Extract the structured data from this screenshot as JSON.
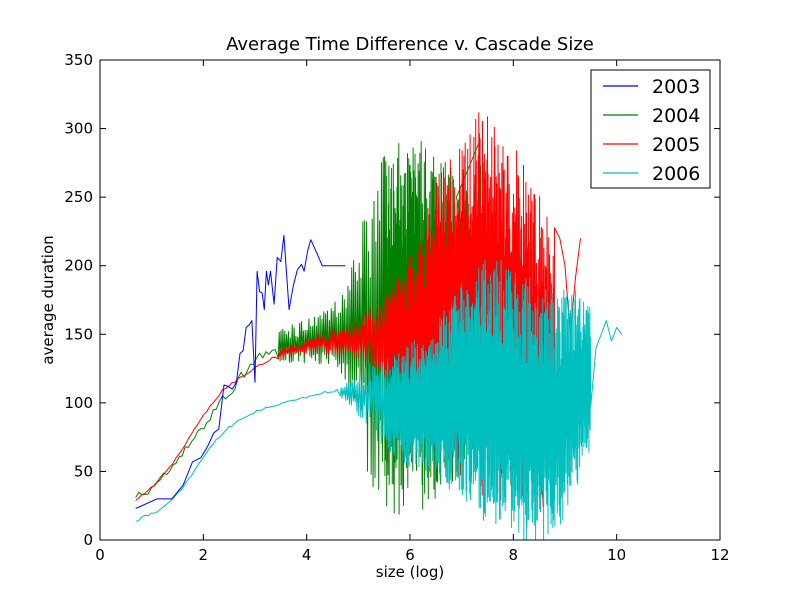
{
  "chart_data": {
    "type": "line",
    "title": "Average Time Difference v. Cascade Size",
    "xlabel": "size (log)",
    "ylabel": "average duration",
    "xlim": [
      0,
      12
    ],
    "ylim": [
      0,
      350
    ],
    "xticks": [
      "0",
      "2",
      "4",
      "6",
      "8",
      "10",
      "12"
    ],
    "yticks": [
      "0",
      "50",
      "100",
      "150",
      "200",
      "250",
      "300",
      "350"
    ],
    "grid": false,
    "legend_position": "top-right",
    "series": [
      {
        "name": "2003",
        "color": "#0000ff",
        "trend": [
          [
            0.69,
            23
          ],
          [
            1.1,
            30
          ],
          [
            1.39,
            30
          ],
          [
            1.61,
            40
          ],
          [
            1.79,
            57
          ],
          [
            1.95,
            60
          ],
          [
            2.08,
            68
          ],
          [
            2.2,
            78
          ],
          [
            2.3,
            81
          ],
          [
            2.4,
            113
          ],
          [
            2.48,
            112
          ],
          [
            2.56,
            110
          ],
          [
            2.64,
            115
          ],
          [
            2.71,
            136
          ],
          [
            2.77,
            138
          ],
          [
            2.83,
            155
          ],
          [
            2.89,
            157
          ],
          [
            2.94,
            160
          ],
          [
            3.0,
            115
          ],
          [
            3.04,
            196
          ],
          [
            3.09,
            181
          ],
          [
            3.14,
            180
          ],
          [
            3.18,
            168
          ],
          [
            3.22,
            196
          ],
          [
            3.26,
            186
          ],
          [
            3.3,
            196
          ],
          [
            3.37,
            172
          ],
          [
            3.43,
            206
          ],
          [
            3.5,
            203
          ],
          [
            3.56,
            222
          ],
          [
            3.6,
            200
          ],
          [
            3.66,
            168
          ],
          [
            3.74,
            185
          ],
          [
            3.82,
            197
          ],
          [
            3.9,
            201
          ],
          [
            3.95,
            196
          ],
          [
            4.02,
            211
          ],
          [
            4.08,
            219
          ],
          [
            4.2,
            209
          ],
          [
            4.3,
            200
          ],
          [
            4.6,
            200
          ],
          [
            4.75,
            200
          ]
        ]
      },
      {
        "name": "2004",
        "color": "#008000",
        "trend": [
          [
            0.69,
            31
          ],
          [
            0.9,
            35
          ],
          [
            1.1,
            41
          ],
          [
            1.39,
            52
          ],
          [
            1.61,
            63
          ],
          [
            1.79,
            72
          ],
          [
            1.95,
            80
          ],
          [
            2.08,
            87
          ],
          [
            2.2,
            94
          ],
          [
            2.3,
            100
          ],
          [
            2.4,
            104
          ],
          [
            2.56,
            110
          ],
          [
            2.71,
            118
          ],
          [
            2.89,
            127
          ],
          [
            3.04,
            133
          ],
          [
            3.2,
            136
          ],
          [
            3.4,
            138
          ],
          [
            3.6,
            143
          ],
          [
            3.8,
            143
          ],
          [
            4.0,
            145
          ],
          [
            4.2,
            147
          ],
          [
            4.4,
            148
          ],
          [
            4.6,
            150
          ],
          [
            4.8,
            150
          ],
          [
            5.0,
            152
          ],
          [
            5.2,
            153
          ],
          [
            5.4,
            153
          ],
          [
            5.6,
            154
          ],
          [
            5.8,
            155
          ],
          [
            6.0,
            155
          ],
          [
            6.2,
            156
          ],
          [
            6.4,
            156
          ],
          [
            6.6,
            157
          ],
          [
            6.8,
            157
          ],
          [
            7.0,
            158
          ],
          [
            7.2,
            160
          ],
          [
            7.4,
            164
          ]
        ],
        "noise": [
          [
            3.4,
            12
          ],
          [
            4.0,
            16
          ],
          [
            4.5,
            22
          ],
          [
            4.8,
            45
          ],
          [
            5.2,
            110
          ],
          [
            5.6,
            135
          ],
          [
            6.0,
            140
          ],
          [
            6.4,
            130
          ],
          [
            6.8,
            120
          ],
          [
            7.2,
            110
          ],
          [
            7.5,
            110
          ]
        ],
        "extra": [
          [
            6.9,
            250
          ],
          [
            7.34,
            290
          ]
        ]
      },
      {
        "name": "2005",
        "color": "#ff0000",
        "trend": [
          [
            0.69,
            29
          ],
          [
            0.9,
            35
          ],
          [
            1.1,
            41
          ],
          [
            1.39,
            55
          ],
          [
            1.61,
            67
          ],
          [
            1.79,
            78
          ],
          [
            1.95,
            88
          ],
          [
            2.08,
            95
          ],
          [
            2.2,
            101
          ],
          [
            2.3,
            106
          ],
          [
            2.4,
            110
          ],
          [
            2.56,
            114
          ],
          [
            2.71,
            118
          ],
          [
            2.89,
            123
          ],
          [
            3.04,
            126
          ],
          [
            3.2,
            130
          ],
          [
            3.4,
            134
          ],
          [
            3.6,
            137
          ],
          [
            3.8,
            139
          ],
          [
            4.0,
            141
          ],
          [
            4.2,
            143
          ],
          [
            4.4,
            144
          ],
          [
            4.6,
            145
          ],
          [
            4.8,
            146
          ],
          [
            5.0,
            147
          ],
          [
            5.2,
            147
          ],
          [
            5.4,
            148
          ],
          [
            5.6,
            149
          ],
          [
            5.8,
            150
          ],
          [
            6.0,
            152
          ],
          [
            6.2,
            155
          ],
          [
            6.4,
            160
          ],
          [
            6.6,
            163
          ],
          [
            6.8,
            166
          ],
          [
            7.0,
            170
          ],
          [
            7.2,
            172
          ],
          [
            7.4,
            172
          ],
          [
            7.6,
            170
          ],
          [
            7.8,
            165
          ],
          [
            8.0,
            160
          ],
          [
            8.2,
            150
          ],
          [
            8.4,
            140
          ],
          [
            8.6,
            135
          ],
          [
            8.8,
            130
          ]
        ],
        "noise": [
          [
            3.4,
            3
          ],
          [
            4.0,
            6
          ],
          [
            4.5,
            10
          ],
          [
            5.0,
            16
          ],
          [
            5.5,
            30
          ],
          [
            6.0,
            55
          ],
          [
            6.3,
            80
          ],
          [
            6.6,
            110
          ],
          [
            7.0,
            125
          ],
          [
            7.3,
            140
          ],
          [
            7.7,
            140
          ],
          [
            8.0,
            130
          ],
          [
            8.4,
            120
          ],
          [
            8.8,
            100
          ]
        ],
        "extra": [
          [
            8.9,
            220
          ],
          [
            9.0,
            200
          ],
          [
            9.1,
            150
          ],
          [
            9.2,
            190
          ],
          [
            9.3,
            220
          ]
        ]
      },
      {
        "name": "2006",
        "color": "#00bfbf",
        "trend": [
          [
            0.69,
            14
          ],
          [
            1.1,
            21
          ],
          [
            1.39,
            29
          ],
          [
            1.61,
            38
          ],
          [
            1.79,
            48
          ],
          [
            1.95,
            58
          ],
          [
            2.08,
            65
          ],
          [
            2.2,
            70
          ],
          [
            2.3,
            75
          ],
          [
            2.4,
            79
          ],
          [
            2.56,
            84
          ],
          [
            2.71,
            88
          ],
          [
            2.89,
            91
          ],
          [
            3.04,
            94
          ],
          [
            3.2,
            96
          ],
          [
            3.4,
            98
          ],
          [
            3.6,
            101
          ],
          [
            3.8,
            103
          ],
          [
            4.0,
            104
          ],
          [
            4.2,
            106
          ],
          [
            4.4,
            108
          ],
          [
            4.6,
            109
          ],
          [
            4.8,
            108
          ],
          [
            5.0,
            106
          ],
          [
            5.2,
            104
          ],
          [
            5.4,
            100
          ],
          [
            5.6,
            98
          ],
          [
            5.8,
            97
          ],
          [
            6.0,
            98
          ],
          [
            6.2,
            100
          ],
          [
            6.4,
            102
          ],
          [
            6.6,
            104
          ],
          [
            6.8,
            106
          ],
          [
            7.0,
            108
          ],
          [
            7.2,
            110
          ],
          [
            7.4,
            110
          ],
          [
            7.6,
            108
          ],
          [
            7.8,
            105
          ],
          [
            8.0,
            100
          ],
          [
            8.2,
            95
          ],
          [
            8.4,
            92
          ],
          [
            8.6,
            90
          ],
          [
            8.8,
            92
          ],
          [
            9.0,
            100
          ],
          [
            9.2,
            110
          ],
          [
            9.4,
            120
          ],
          [
            9.5,
            118
          ]
        ],
        "noise": [
          [
            4.6,
            3
          ],
          [
            4.9,
            12
          ],
          [
            5.2,
            25
          ],
          [
            5.6,
            35
          ],
          [
            6.0,
            45
          ],
          [
            6.4,
            55
          ],
          [
            6.8,
            70
          ],
          [
            7.2,
            90
          ],
          [
            7.6,
            100
          ],
          [
            8.0,
            105
          ],
          [
            8.4,
            100
          ],
          [
            8.8,
            90
          ],
          [
            9.2,
            75
          ],
          [
            9.5,
            60
          ]
        ],
        "extra": [
          [
            9.6,
            140
          ],
          [
            9.7,
            150
          ],
          [
            9.8,
            160
          ],
          [
            9.9,
            145
          ],
          [
            10.0,
            155
          ],
          [
            10.1,
            150
          ]
        ]
      }
    ]
  }
}
